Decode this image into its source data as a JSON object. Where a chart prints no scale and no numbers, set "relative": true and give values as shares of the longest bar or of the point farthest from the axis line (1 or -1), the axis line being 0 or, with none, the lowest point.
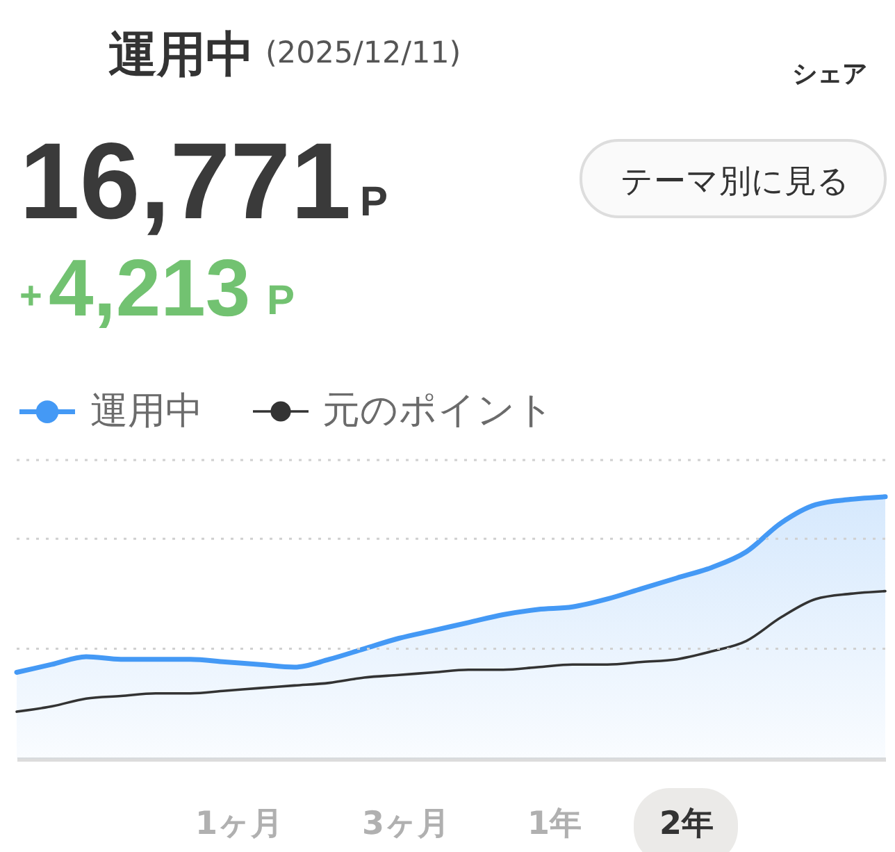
{
  "chart_data": {
    "type": "line",
    "title": "運用中",
    "subtitle": "(2025/12/11)",
    "categories": [
      null,
      null,
      null,
      null,
      null,
      null,
      null,
      null,
      null,
      null,
      null,
      null,
      null,
      null,
      null,
      null,
      null,
      null,
      null,
      null,
      null,
      null,
      null,
      null,
      null,
      null
    ],
    "relative": true,
    "series": [
      {
        "name": "運用中",
        "type": "area",
        "color": "#4499f5",
        "values": [
          0.33,
          0.36,
          0.39,
          0.38,
          0.38,
          0.38,
          0.37,
          0.36,
          0.35,
          0.38,
          0.42,
          0.46,
          0.49,
          0.52,
          0.55,
          0.57,
          0.58,
          0.61,
          0.65,
          0.69,
          0.73,
          0.79,
          0.9,
          0.97,
          0.99,
          1
        ]
      },
      {
        "name": "元のポイント",
        "color": "#333333",
        "values": [
          0.18,
          0.2,
          0.23,
          0.24,
          0.25,
          0.25,
          0.26,
          0.27,
          0.28,
          0.29,
          0.31,
          0.32,
          0.33,
          0.34,
          0.34,
          0.35,
          0.36,
          0.36,
          0.37,
          0.38,
          0.41,
          0.45,
          0.54,
          0.61,
          0.63,
          0.64
        ]
      }
    ],
    "ref_lines": [
      {
        "axis": "y",
        "value": 0.42,
        "line_style": "dotted",
        "color": "#d0d0d0"
      },
      {
        "axis": "y",
        "value": 0.84,
        "line_style": "dotted",
        "color": "#d0d0d0"
      },
      {
        "axis": "y",
        "value": 1.14,
        "line_style": "dotted",
        "color": "#d0d0d0"
      }
    ],
    "legend": "top left",
    "tick_labels": false,
    "annotations": [
      "シェア",
      "16,771",
      "P",
      "テーマ別に見る",
      "+",
      "4,213",
      "P",
      "1ヶ月",
      "3ヶ月",
      "1年",
      "2年"
    ]
  }
}
